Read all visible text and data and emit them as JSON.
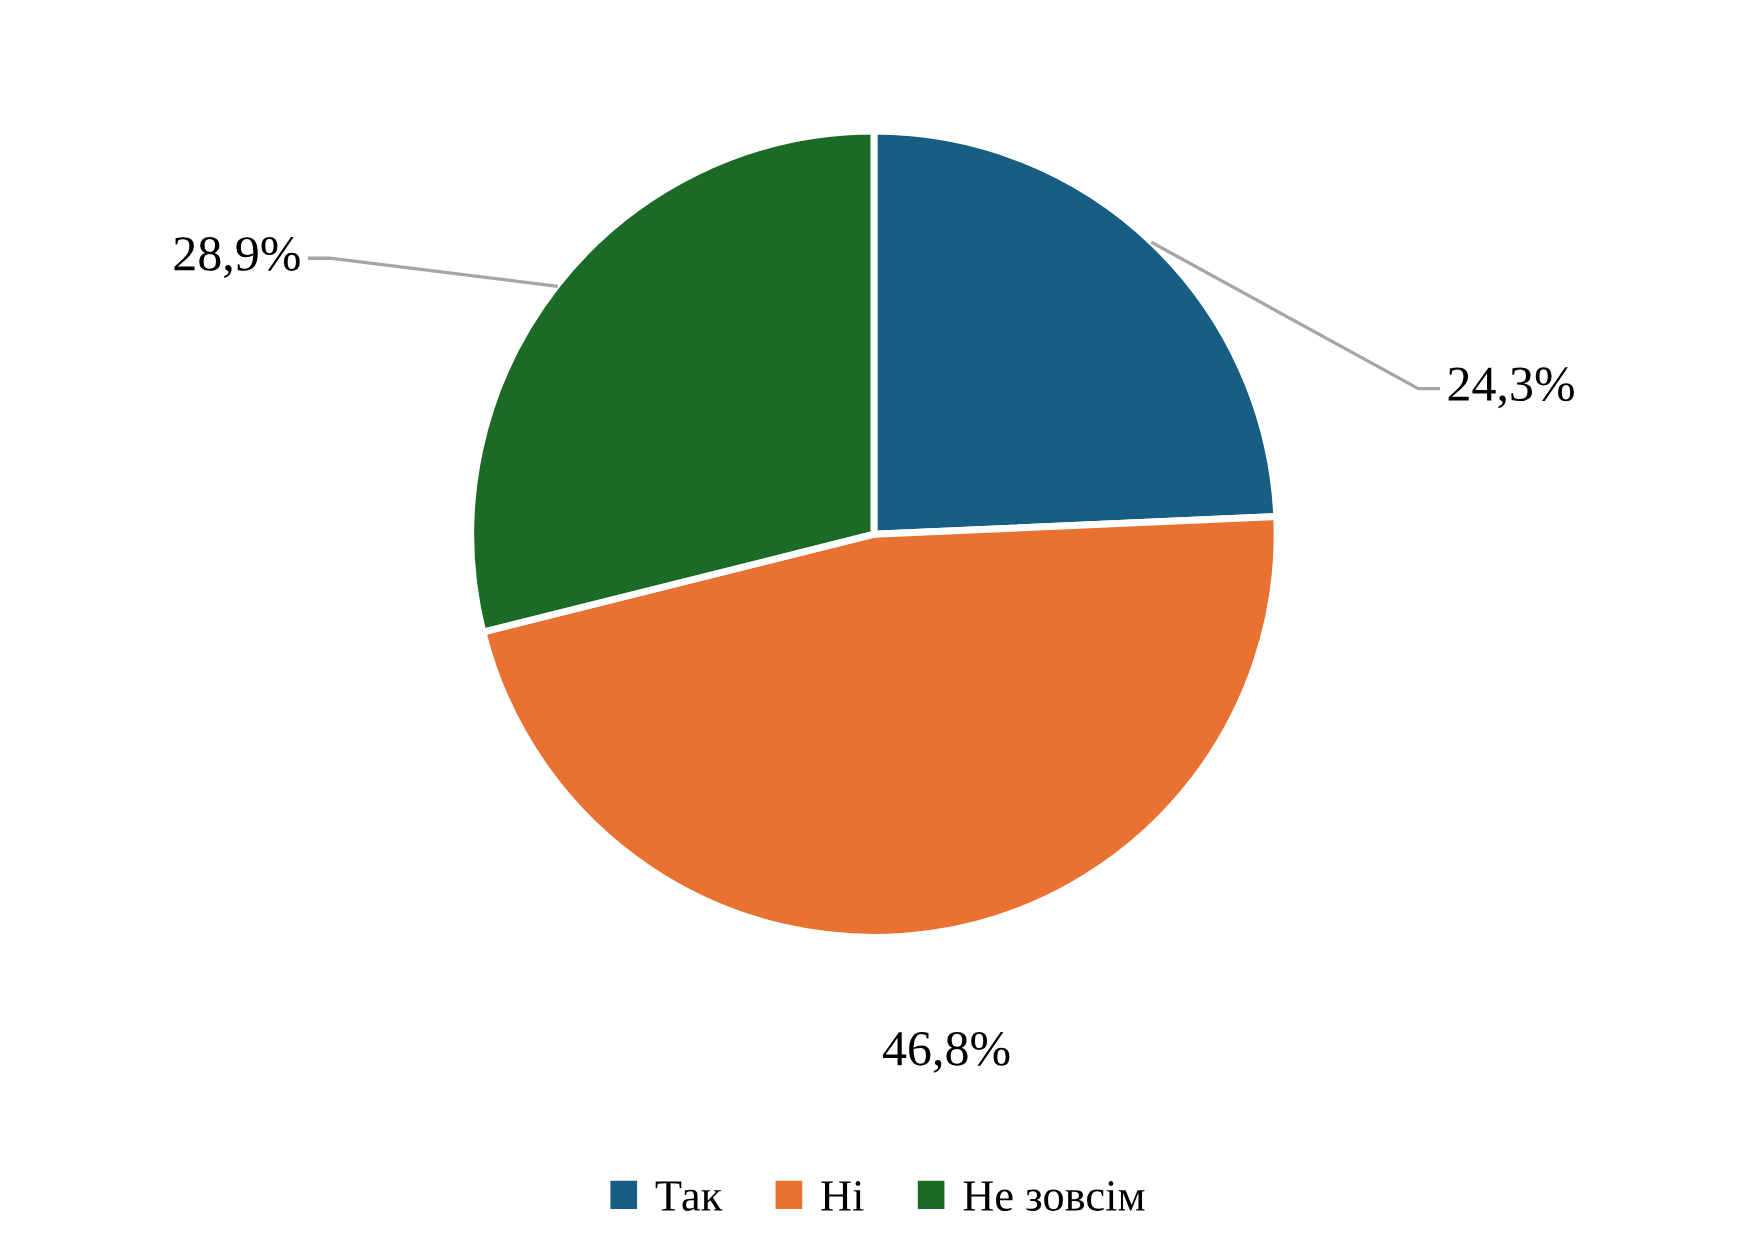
{
  "chart_data": {
    "type": "pie",
    "categories": [
      "Так",
      "Ні",
      "Не зовсім"
    ],
    "values": [
      24.3,
      46.8,
      28.9
    ],
    "colors": [
      "#175e82",
      "#e97132",
      "#1b6b27"
    ],
    "value_labels": [
      "24,3%",
      "46,8%",
      "28,9%"
    ],
    "legend": "bottom"
  }
}
